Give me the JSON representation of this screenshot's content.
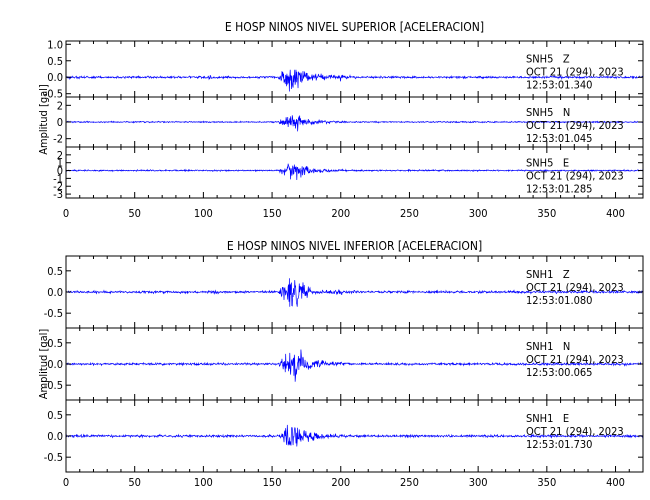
{
  "colors": {
    "trace": "#0000ff",
    "axis": "#000000",
    "background": "#ffffff"
  },
  "chart_data": [
    {
      "type": "line",
      "title": "E HOSP NINOS NIVEL SUPERIOR [ACELERACION]",
      "ylabel": "Amplitud [gal]",
      "xlim": [
        0,
        420
      ],
      "x_ticks": [
        0,
        50,
        100,
        150,
        200,
        250,
        300,
        350,
        400
      ],
      "channels": [
        {
          "station": "SNH5   Z",
          "date": "OCT 21 (294), 2023",
          "time": "12:53:01.340",
          "ylim": [
            -0.6,
            1.1
          ],
          "y_ticks": [
            -0.5,
            0.0,
            0.5,
            1.0
          ],
          "y_tick_labels": [
            "-0.5",
            "0.0",
            "0.5",
            "1.0"
          ],
          "noise": 0.03,
          "peak": 1.0,
          "small_bursts": [
            105,
            200
          ]
        },
        {
          "station": "SNH5   N",
          "date": "OCT 21 (294), 2023",
          "time": "12:53:01.045",
          "ylim": [
            -3,
            3
          ],
          "y_ticks": [
            -2,
            0,
            2
          ],
          "y_tick_labels": [
            "-2",
            "0",
            "2"
          ],
          "noise": 0.07,
          "peak": 2.2,
          "small_bursts": []
        },
        {
          "station": "SNH5   E",
          "date": "OCT 21 (294), 2023",
          "time": "12:53:01.285",
          "ylim": [
            -3.5,
            3
          ],
          "y_ticks": [
            -3,
            -2,
            -1,
            0,
            1,
            2
          ],
          "y_tick_labels": [
            "-3",
            "-2",
            "-1",
            "0",
            "1",
            "2"
          ],
          "noise": 0.08,
          "peak": 2.6,
          "small_bursts": []
        }
      ]
    },
    {
      "type": "line",
      "title": "E HOSP NINOS NIVEL INFERIOR [ACELERACION]",
      "ylabel": "Amplitud [gal]",
      "xlim": [
        0,
        420
      ],
      "x_ticks": [
        0,
        50,
        100,
        150,
        200,
        250,
        300,
        350,
        400
      ],
      "channels": [
        {
          "station": "SNH1   Z",
          "date": "OCT 21 (294), 2023",
          "time": "12:53:01.080",
          "ylim": [
            -0.85,
            0.85
          ],
          "y_ticks": [
            -0.5,
            0.0,
            0.5
          ],
          "y_tick_labels": [
            "-0.5",
            "0.0",
            "0.5"
          ],
          "noise": 0.025,
          "peak": 0.75,
          "small_bursts": [
            110,
            200
          ]
        },
        {
          "station": "SNH1   N",
          "date": "OCT 21 (294), 2023",
          "time": "12:53:00.065",
          "ylim": [
            -0.85,
            0.85
          ],
          "y_ticks": [
            -0.5,
            0.0,
            0.5
          ],
          "y_tick_labels": [
            "-0.5",
            "0.0",
            "0.5"
          ],
          "noise": 0.025,
          "peak": 0.8,
          "small_bursts": []
        },
        {
          "station": "SNH1   E",
          "date": "OCT 21 (294), 2023",
          "time": "12:53:01.730",
          "ylim": [
            -0.85,
            0.85
          ],
          "y_ticks": [
            -0.5,
            0.0,
            0.5
          ],
          "y_tick_labels": [
            "-0.5",
            "0.0",
            "0.5"
          ],
          "noise": 0.025,
          "peak": 0.75,
          "small_bursts": []
        }
      ]
    }
  ]
}
